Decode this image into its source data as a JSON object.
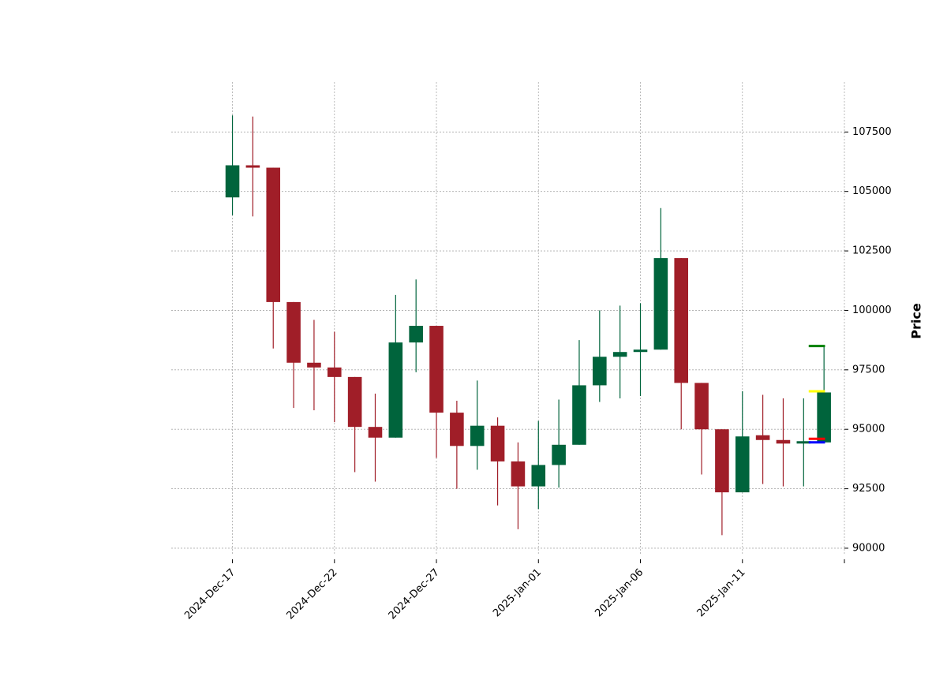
{
  "chart_data": {
    "type": "candlestick",
    "ylabel": "Price",
    "y_axis_side": "right",
    "ylim": [
      89700,
      109600
    ],
    "yticks": [
      90000,
      92500,
      95000,
      97500,
      100000,
      102500,
      105000,
      107500
    ],
    "ytick_labels": [
      "90000",
      "92500",
      "95000",
      "97500",
      "100000",
      "102500",
      "105000",
      "107500"
    ],
    "xticks": [
      {
        "date": "2024-12-17",
        "label": "2024-Dec-17"
      },
      {
        "date": "2024-12-22",
        "label": "2024-Dec-22"
      },
      {
        "date": "2024-12-27",
        "label": "2024-Dec-27"
      },
      {
        "date": "2025-01-01",
        "label": "2025-Jan-01"
      },
      {
        "date": "2025-01-06",
        "label": "2025-Jan-06"
      },
      {
        "date": "2025-01-11",
        "label": "2025-Jan-11"
      },
      {
        "date": "2025-01-16",
        "label": ""
      }
    ],
    "xlim": [
      "2024-12-14",
      "2025-01-16"
    ],
    "grid": true,
    "colors": {
      "up": "#00643c",
      "down": "#a01e28",
      "grid": "#aaaaaa"
    },
    "candles": [
      {
        "date": "2024-12-17",
        "open": 104750,
        "high": 108200,
        "low": 104000,
        "close": 106100
      },
      {
        "date": "2024-12-18",
        "open": 106100,
        "high": 108150,
        "low": 103950,
        "close": 106000
      },
      {
        "date": "2024-12-19",
        "open": 106000,
        "high": 106000,
        "low": 98400,
        "close": 100350
      },
      {
        "date": "2024-12-20",
        "open": 100350,
        "high": 100350,
        "low": 95900,
        "close": 97800
      },
      {
        "date": "2024-12-21",
        "open": 97800,
        "high": 99600,
        "low": 95800,
        "close": 97600
      },
      {
        "date": "2024-12-22",
        "open": 97600,
        "high": 99100,
        "low": 95300,
        "close": 97200
      },
      {
        "date": "2024-12-23",
        "open": 97200,
        "high": 97200,
        "low": 93200,
        "close": 95100
      },
      {
        "date": "2024-12-24",
        "open": 95100,
        "high": 96500,
        "low": 92800,
        "close": 94650
      },
      {
        "date": "2024-12-25",
        "open": 94650,
        "high": 100650,
        "low": 94650,
        "close": 98650
      },
      {
        "date": "2024-12-26",
        "open": 98650,
        "high": 101300,
        "low": 97400,
        "close": 99350
      },
      {
        "date": "2024-12-27",
        "open": 99350,
        "high": 99350,
        "low": 93800,
        "close": 95700
      },
      {
        "date": "2024-12-28",
        "open": 95700,
        "high": 96200,
        "low": 92500,
        "close": 94300
      },
      {
        "date": "2024-12-29",
        "open": 94300,
        "high": 97050,
        "low": 93300,
        "close": 95150
      },
      {
        "date": "2024-12-30",
        "open": 95150,
        "high": 95500,
        "low": 91800,
        "close": 93650
      },
      {
        "date": "2024-12-31",
        "open": 93650,
        "high": 94450,
        "low": 90800,
        "close": 92600
      },
      {
        "date": "2025-01-01",
        "open": 92600,
        "high": 95350,
        "low": 91650,
        "close": 93500
      },
      {
        "date": "2025-01-02",
        "open": 93500,
        "high": 96250,
        "low": 92550,
        "close": 94350
      },
      {
        "date": "2025-01-03",
        "open": 94350,
        "high": 98750,
        "low": 94350,
        "close": 96850
      },
      {
        "date": "2025-01-04",
        "open": 96850,
        "high": 100000,
        "low": 96150,
        "close": 98050
      },
      {
        "date": "2025-01-05",
        "open": 98050,
        "high": 100200,
        "low": 96300,
        "close": 98250
      },
      {
        "date": "2025-01-06",
        "open": 98250,
        "high": 100300,
        "low": 96400,
        "close": 98350
      },
      {
        "date": "2025-01-07",
        "open": 98350,
        "high": 104300,
        "low": 98350,
        "close": 102200
      },
      {
        "date": "2025-01-08",
        "open": 102200,
        "high": 102200,
        "low": 95000,
        "close": 96950
      },
      {
        "date": "2025-01-09",
        "open": 96950,
        "high": 96950,
        "low": 93100,
        "close": 95000
      },
      {
        "date": "2025-01-10",
        "open": 95000,
        "high": 95000,
        "low": 90550,
        "close": 92350
      },
      {
        "date": "2025-01-11",
        "open": 92350,
        "high": 96600,
        "low": 92350,
        "close": 94700
      },
      {
        "date": "2025-01-12",
        "open": 94750,
        "high": 96450,
        "low": 92700,
        "close": 94550
      },
      {
        "date": "2025-01-13",
        "open": 94550,
        "high": 96300,
        "low": 92600,
        "close": 94400
      },
      {
        "date": "2025-01-14",
        "open": 94450,
        "high": 96300,
        "low": 92600,
        "close": 94500
      },
      {
        "date": "2025-01-15",
        "open": 94450,
        "high": 98500,
        "low": 94450,
        "close": 96550
      }
    ],
    "annotations": [
      {
        "date": "2025-01-15",
        "value": 98500,
        "color": "#008000"
      },
      {
        "date": "2025-01-15",
        "value": 96600,
        "color": "#ffff00"
      },
      {
        "date": "2025-01-15",
        "value": 94600,
        "color": "#ff0000"
      },
      {
        "date": "2025-01-15",
        "value": 94450,
        "color": "#0000ff"
      }
    ]
  }
}
